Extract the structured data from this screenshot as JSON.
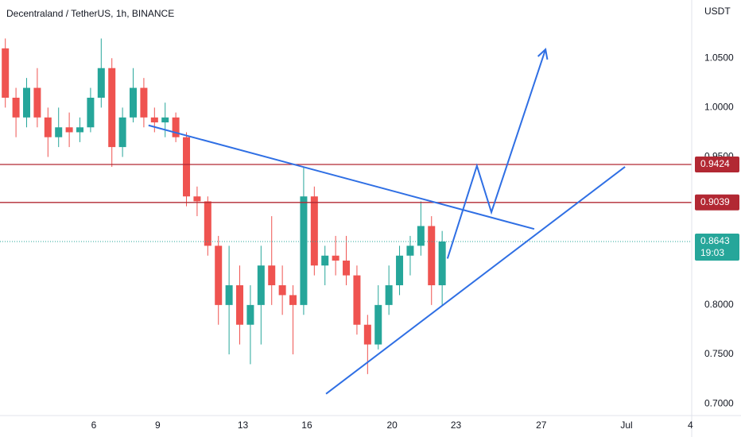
{
  "chart_data": {
    "type": "candlestick",
    "title": "Decentraland / TetherUS, 1h, BINANCE",
    "y_axis_label": "USDT",
    "countdown": "19:03",
    "up_color": "#26a69a",
    "down_color": "#ef5350",
    "xlim": [
      1.6,
      34.06
    ],
    "ylim": [
      0.688,
      1.109
    ],
    "xticks": [
      6,
      9,
      13,
      16,
      20,
      23,
      27,
      {
        "value": 31,
        "label": "Jul"
      },
      {
        "value": 34,
        "label": "4"
      }
    ],
    "yticks": [
      {
        "value": 0.7,
        "label": "0.7000"
      },
      {
        "value": 0.75,
        "label": "0.7500"
      },
      {
        "value": 0.8,
        "label": "0.8000"
      },
      {
        "value": 0.95,
        "label": "0.9500"
      },
      {
        "value": 1.0,
        "label": "1.0000"
      },
      {
        "value": 1.05,
        "label": "1.0500"
      }
    ],
    "x": [
      1.85,
      2.35,
      2.85,
      3.35,
      3.85,
      4.35,
      4.85,
      5.35,
      5.85,
      6.35,
      6.85,
      7.35,
      7.85,
      8.35,
      8.85,
      9.35,
      9.85,
      10.35,
      10.85,
      11.35,
      11.85,
      12.35,
      12.85,
      13.35,
      13.85,
      14.35,
      14.85,
      15.35,
      15.85,
      16.35,
      16.85,
      17.35,
      17.85,
      18.35,
      18.85,
      19.35,
      19.85,
      20.35,
      20.85,
      21.35,
      21.85,
      22.35
    ],
    "open": [
      1.06,
      1.01,
      0.99,
      1.02,
      0.99,
      0.97,
      0.98,
      0.975,
      0.98,
      1.01,
      1.04,
      0.96,
      0.99,
      1.02,
      0.99,
      0.985,
      0.99,
      0.97,
      0.91,
      0.905,
      0.86,
      0.8,
      0.82,
      0.78,
      0.8,
      0.84,
      0.82,
      0.81,
      0.8,
      0.91,
      0.84,
      0.85,
      0.845,
      0.83,
      0.78,
      0.76,
      0.8,
      0.82,
      0.85,
      0.86,
      0.88,
      0.82
    ],
    "high": [
      1.07,
      1.02,
      1.03,
      1.04,
      1.0,
      1.0,
      0.995,
      0.99,
      1.02,
      1.07,
      1.05,
      1.0,
      1.04,
      1.03,
      1.0,
      1.005,
      0.995,
      0.975,
      0.92,
      0.91,
      0.87,
      0.86,
      0.84,
      0.82,
      0.86,
      0.89,
      0.84,
      0.82,
      0.94,
      0.92,
      0.86,
      0.87,
      0.87,
      0.84,
      0.79,
      0.82,
      0.84,
      0.86,
      0.87,
      0.905,
      0.89,
      0.875
    ],
    "low": [
      1.0,
      0.97,
      0.98,
      0.98,
      0.95,
      0.96,
      0.96,
      0.965,
      0.975,
      1.0,
      0.94,
      0.95,
      0.985,
      0.98,
      0.975,
      0.97,
      0.965,
      0.9,
      0.89,
      0.85,
      0.78,
      0.75,
      0.76,
      0.74,
      0.76,
      0.8,
      0.79,
      0.75,
      0.79,
      0.83,
      0.82,
      0.83,
      0.82,
      0.77,
      0.73,
      0.755,
      0.79,
      0.81,
      0.83,
      0.85,
      0.8,
      0.8
    ],
    "close": [
      1.01,
      0.99,
      1.02,
      0.99,
      0.97,
      0.98,
      0.975,
      0.98,
      1.01,
      1.04,
      0.96,
      0.99,
      1.02,
      0.99,
      0.985,
      0.99,
      0.97,
      0.91,
      0.905,
      0.86,
      0.8,
      0.82,
      0.78,
      0.8,
      0.84,
      0.82,
      0.81,
      0.8,
      0.91,
      0.84,
      0.85,
      0.845,
      0.83,
      0.78,
      0.76,
      0.8,
      0.82,
      0.85,
      0.86,
      0.88,
      0.82,
      0.8643
    ],
    "hlines": [
      {
        "value": 0.9424,
        "color": "#b22833",
        "style": "solid"
      },
      {
        "value": 0.9039,
        "color": "#b22833",
        "style": "solid"
      },
      {
        "value": 0.8643,
        "color": "#26a69a",
        "style": "dotted",
        "countdown": true
      }
    ],
    "drawings": [
      {
        "color": "#2f6fe4",
        "x": [
          8.57,
          26.67
        ],
        "y": [
          0.982,
          0.877
        ],
        "arrow": false
      },
      {
        "color": "#2f6fe4",
        "x": [
          16.9,
          30.93
        ],
        "y": [
          0.71,
          0.94
        ],
        "arrow": false
      },
      {
        "color": "#2f6fe4",
        "x": [
          22.6,
          23.98,
          24.66,
          27.2
        ],
        "y": [
          0.847,
          0.941,
          0.894,
          1.059
        ],
        "arrow": true
      }
    ]
  }
}
